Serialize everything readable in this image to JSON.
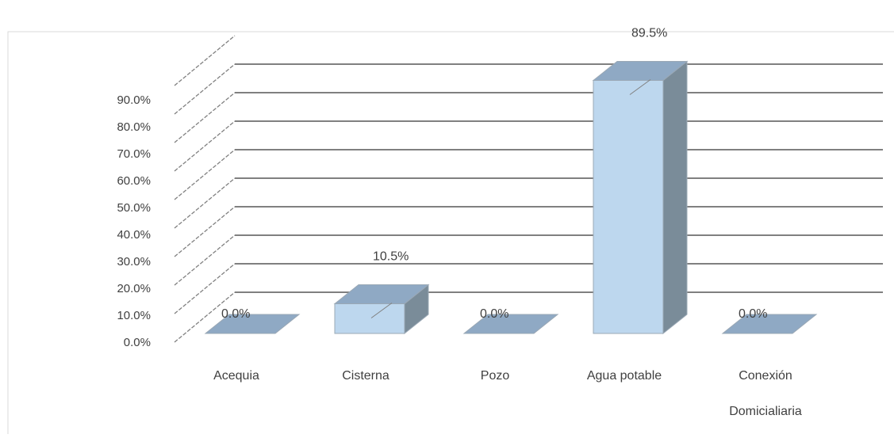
{
  "chart_data": {
    "type": "bar",
    "title": "",
    "xlabel": "",
    "ylabel": "",
    "categories": [
      "Acequia",
      "Cisterna",
      "Pozo",
      "Agua potable",
      "Conexión Domicialiaria"
    ],
    "values": [
      0.0,
      10.5,
      0.0,
      89.5,
      0.0
    ],
    "data_labels": [
      "0.0%",
      "10.5%",
      "0.0%",
      "89.5%",
      "0.0%"
    ],
    "y_tick_labels": [
      "0.0%",
      "10.0%",
      "20.0%",
      "30.0%",
      "40.0%",
      "50.0%",
      "60.0%",
      "70.0%",
      "80.0%",
      "90.0%"
    ],
    "ylim": [
      0,
      90
    ],
    "grid": true,
    "three_d": true,
    "legend": "none",
    "colors": {
      "bar_front": "#bdd7ee",
      "bar_top": "#8fa9c4",
      "bar_side": "#7a8c99",
      "bar_outline": "#9aa8b5",
      "flat_bar": "#8fa9c4",
      "gridline": "#808080",
      "axis_text": "#404040",
      "border": "#d9d9d9"
    }
  }
}
